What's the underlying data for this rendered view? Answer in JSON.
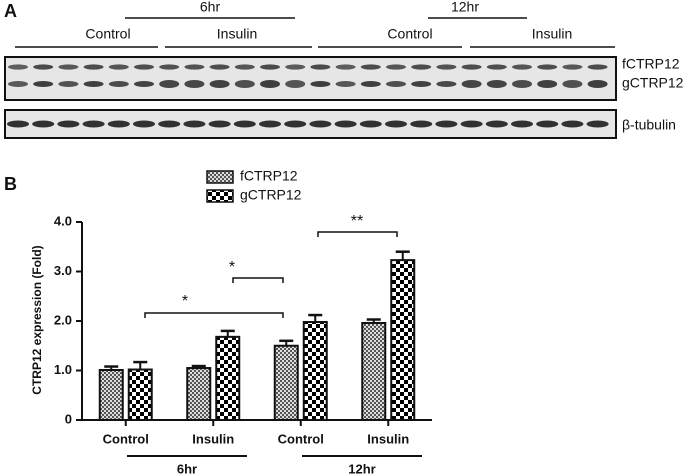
{
  "panel_a": {
    "label": "A",
    "timepoints": [
      "6hr",
      "12hr"
    ],
    "groups": [
      "Control",
      "Insulin",
      "Control",
      "Insulin"
    ],
    "bands": [
      "fCTRP12",
      "gCTRP12",
      "β-tubulin"
    ]
  },
  "chart_data": {
    "type": "bar",
    "panel_label": "B",
    "ylabel": "CTRP12 expression (Fold)",
    "categories": [
      "Control",
      "Insulin",
      "Control",
      "Insulin"
    ],
    "groups": [
      "6hr",
      "12hr"
    ],
    "series": [
      {
        "name": "fCTRP12",
        "color": "#555555",
        "values": [
          1.01,
          1.05,
          1.5,
          1.96
        ],
        "errors": [
          0.07,
          0.04,
          0.1,
          0.07
        ]
      },
      {
        "name": "gCTRP12",
        "color": "#000000",
        "values": [
          1.02,
          1.68,
          1.98,
          3.23
        ],
        "errors": [
          0.15,
          0.12,
          0.14,
          0.17
        ]
      }
    ],
    "ylim": [
      0,
      4
    ],
    "yticks": [
      0,
      {
        "value": 1,
        "label": "1.0"
      },
      {
        "value": 2,
        "label": "2.0"
      },
      {
        "value": 3,
        "label": "3.0"
      },
      {
        "value": 4,
        "label": "4.0"
      }
    ],
    "annotations": [
      "*",
      "*",
      "**"
    ]
  }
}
